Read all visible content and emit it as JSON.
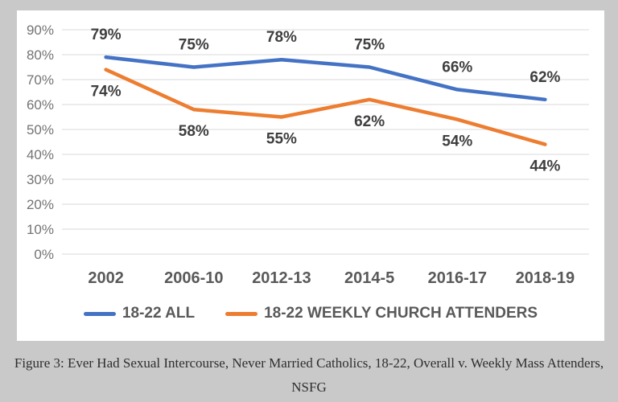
{
  "page": {
    "background_color": "#c9c9c9",
    "card_color": "#ffffff"
  },
  "chart_data": {
    "type": "line",
    "title": "",
    "xlabel": "",
    "ylabel": "",
    "categories": [
      "2002",
      "2006-10",
      "2012-13",
      "2014-5",
      "2016-17",
      "2018-19"
    ],
    "series": [
      {
        "name": "18-22 ALL",
        "color": "#4472C4",
        "values": [
          79,
          75,
          78,
          75,
          66,
          62
        ],
        "data_label_position": "above"
      },
      {
        "name": "18-22 WEEKLY CHURCH ATTENDERS",
        "color": "#ED7D31",
        "values": [
          74,
          58,
          55,
          62,
          54,
          44
        ],
        "data_label_position": "below"
      }
    ],
    "ylim": [
      0,
      90
    ],
    "ytick_step": 10,
    "ytick_labels": [
      "0%",
      "10%",
      "20%",
      "30%",
      "40%",
      "50%",
      "60%",
      "70%",
      "80%",
      "90%"
    ],
    "data_label_format": "{v}%",
    "grid": true,
    "gridline_color": "#d9d9d9",
    "ytick_color": "#737373",
    "xtick_color": "#595959",
    "data_label_color": "#3f3f3f",
    "legend_position": "bottom"
  },
  "caption": {
    "lines": [
      "Figure 3: Ever Had Sexual Intercourse, Never Married Catholics, 18-22, Overall v. Weekly Mass Attenders,",
      "NSFG"
    ],
    "text": "Figure 3: Ever Had Sexual Intercourse, Never Married Catholics, 18-22, Overall v. Weekly Mass Attenders, NSFG"
  }
}
